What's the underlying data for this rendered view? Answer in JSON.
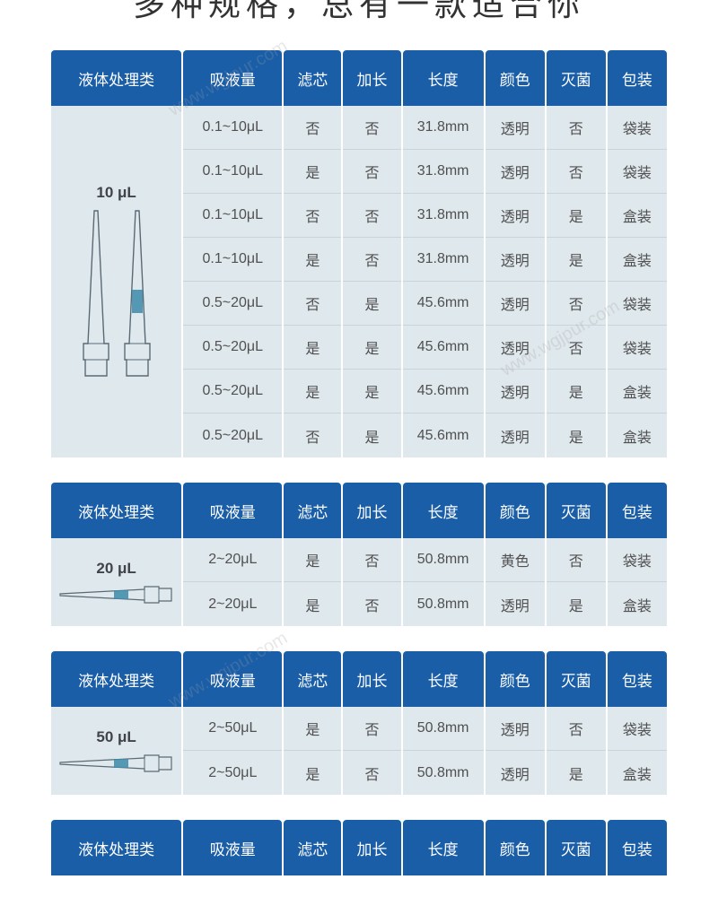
{
  "title": "多种规格，总有一款适合你",
  "watermark_text": "www.wgjpur.com",
  "colors": {
    "header_bg": "#1a5ea8",
    "header_text": "#ffffff",
    "cell_bg": "#dfe8ed",
    "cell_text": "#505050",
    "cell_border": "#c9d4da",
    "page_bg": "#ffffff",
    "tip_outline": "#5a6a74",
    "tip_filter": "#3d8aa8"
  },
  "columns": [
    "液体处理类",
    "吸液量",
    "滤芯",
    "加长",
    "长度",
    "颜色",
    "灭菌",
    "包装"
  ],
  "tables": [
    {
      "label": "10 μL",
      "image": "two_vertical_tips",
      "rows": [
        {
          "vol": "0.1~10μL",
          "filter": "否",
          "ext": "否",
          "len": "31.8mm",
          "color": "透明",
          "ster": "否",
          "pack": "袋装"
        },
        {
          "vol": "0.1~10μL",
          "filter": "是",
          "ext": "否",
          "len": "31.8mm",
          "color": "透明",
          "ster": "否",
          "pack": "袋装"
        },
        {
          "vol": "0.1~10μL",
          "filter": "否",
          "ext": "否",
          "len": "31.8mm",
          "color": "透明",
          "ster": "是",
          "pack": "盒装"
        },
        {
          "vol": "0.1~10μL",
          "filter": "是",
          "ext": "否",
          "len": "31.8mm",
          "color": "透明",
          "ster": "是",
          "pack": "盒装"
        },
        {
          "vol": "0.5~20μL",
          "filter": "否",
          "ext": "是",
          "len": "45.6mm",
          "color": "透明",
          "ster": "否",
          "pack": "袋装"
        },
        {
          "vol": "0.5~20μL",
          "filter": "是",
          "ext": "是",
          "len": "45.6mm",
          "color": "透明",
          "ster": "否",
          "pack": "袋装"
        },
        {
          "vol": "0.5~20μL",
          "filter": "是",
          "ext": "是",
          "len": "45.6mm",
          "color": "透明",
          "ster": "是",
          "pack": "盒装"
        },
        {
          "vol": "0.5~20μL",
          "filter": "否",
          "ext": "是",
          "len": "45.6mm",
          "color": "透明",
          "ster": "是",
          "pack": "盒装"
        }
      ]
    },
    {
      "label": "20 μL",
      "image": "horizontal_tip",
      "rows": [
        {
          "vol": "2~20μL",
          "filter": "是",
          "ext": "否",
          "len": "50.8mm",
          "color": "黄色",
          "ster": "否",
          "pack": "袋装"
        },
        {
          "vol": "2~20μL",
          "filter": "是",
          "ext": "否",
          "len": "50.8mm",
          "color": "透明",
          "ster": "是",
          "pack": "盒装"
        }
      ]
    },
    {
      "label": "50 μL",
      "image": "horizontal_tip",
      "rows": [
        {
          "vol": "2~50μL",
          "filter": "是",
          "ext": "否",
          "len": "50.8mm",
          "color": "透明",
          "ster": "否",
          "pack": "袋装"
        },
        {
          "vol": "2~50μL",
          "filter": "是",
          "ext": "否",
          "len": "50.8mm",
          "color": "透明",
          "ster": "是",
          "pack": "盒装"
        }
      ]
    },
    {
      "label": "",
      "image": "none",
      "rows": []
    }
  ]
}
